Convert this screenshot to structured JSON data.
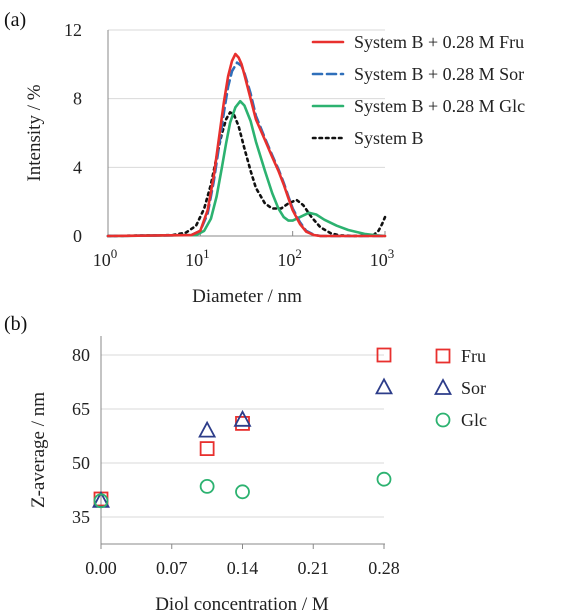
{
  "chart_data": [
    {
      "panel_label": "(a)",
      "type": "line",
      "xlabel": "Diameter / nm",
      "ylabel": "Intensity / %",
      "xscale": "log",
      "xlim": [
        1,
        1000
      ],
      "ylim": [
        0,
        12
      ],
      "yticks": [
        "0",
        "4",
        "8",
        "12"
      ],
      "xticks": [
        {
          "value": 1,
          "base": "10",
          "exp": "0"
        },
        {
          "value": 10,
          "base": "10",
          "exp": "1"
        },
        {
          "value": 100,
          "base": "10",
          "exp": "2"
        },
        {
          "value": 1000,
          "base": "10",
          "exp": "3"
        }
      ],
      "grid": "horizontal",
      "legend_position": "top-right",
      "series": [
        {
          "name": "System B + 0.28 M Fru",
          "color": "#e8302e",
          "style": "solid",
          "points": [
            [
              1,
              0
            ],
            [
              8,
              0.05
            ],
            [
              10,
              0.3
            ],
            [
              12,
              1.5
            ],
            [
              14,
              3.5
            ],
            [
              16,
              5.8
            ],
            [
              18,
              7.8
            ],
            [
              20,
              9.3
            ],
            [
              22,
              10.2
            ],
            [
              24,
              10.6
            ],
            [
              26,
              10.4
            ],
            [
              28,
              10
            ],
            [
              30,
              9.4
            ],
            [
              35,
              8
            ],
            [
              40,
              6.8
            ],
            [
              50,
              5.6
            ],
            [
              60,
              4.6
            ],
            [
              70,
              3.8
            ],
            [
              80,
              3
            ],
            [
              90,
              2.2
            ],
            [
              100,
              1.5
            ],
            [
              120,
              0.7
            ],
            [
              140,
              0.25
            ],
            [
              170,
              0.05
            ],
            [
              200,
              0
            ],
            [
              1000,
              0
            ]
          ]
        },
        {
          "name": "System B + 0.28 M Sor",
          "color": "#2f6fba",
          "style": "dashed",
          "points": [
            [
              1,
              0
            ],
            [
              8,
              0.05
            ],
            [
              10,
              0.3
            ],
            [
              12,
              1.3
            ],
            [
              14,
              3.2
            ],
            [
              16,
              5.3
            ],
            [
              18,
              7.2
            ],
            [
              20,
              8.7
            ],
            [
              22,
              9.6
            ],
            [
              25,
              10.1
            ],
            [
              28,
              9.9
            ],
            [
              30,
              9.5
            ],
            [
              35,
              8.3
            ],
            [
              40,
              7
            ],
            [
              50,
              5.7
            ],
            [
              60,
              4.7
            ],
            [
              70,
              3.9
            ],
            [
              80,
              3.1
            ],
            [
              90,
              2.3
            ],
            [
              100,
              1.6
            ],
            [
              120,
              0.8
            ],
            [
              140,
              0.3
            ],
            [
              170,
              0.07
            ],
            [
              200,
              0
            ],
            [
              1000,
              0
            ]
          ]
        },
        {
          "name": "System B + 0.28 M Glc",
          "color": "#2cb270",
          "style": "solid",
          "points": [
            [
              1,
              0
            ],
            [
              9,
              0.05
            ],
            [
              11,
              0.3
            ],
            [
              13,
              1
            ],
            [
              15,
              2.3
            ],
            [
              17,
              3.9
            ],
            [
              19,
              5.4
            ],
            [
              21,
              6.6
            ],
            [
              24,
              7.5
            ],
            [
              27,
              7.85
            ],
            [
              30,
              7.6
            ],
            [
              35,
              6.7
            ],
            [
              40,
              5.5
            ],
            [
              50,
              3.8
            ],
            [
              60,
              2.5
            ],
            [
              70,
              1.6
            ],
            [
              80,
              1.1
            ],
            [
              90,
              0.9
            ],
            [
              100,
              0.9
            ],
            [
              120,
              1.1
            ],
            [
              150,
              1.35
            ],
            [
              180,
              1.25
            ],
            [
              220,
              0.95
            ],
            [
              300,
              0.6
            ],
            [
              400,
              0.35
            ],
            [
              600,
              0.12
            ],
            [
              800,
              0.04
            ],
            [
              1000,
              0
            ]
          ]
        },
        {
          "name": "System B",
          "color": "#111111",
          "style": "dotted",
          "points": [
            [
              1,
              0
            ],
            [
              5,
              0.05
            ],
            [
              7,
              0.2
            ],
            [
              9,
              0.6
            ],
            [
              11,
              1.6
            ],
            [
              13,
              3
            ],
            [
              15,
              4.6
            ],
            [
              17,
              5.9
            ],
            [
              19,
              6.8
            ],
            [
              21,
              7.2
            ],
            [
              23,
              7.1
            ],
            [
              26,
              6.4
            ],
            [
              30,
              5.1
            ],
            [
              35,
              3.8
            ],
            [
              40,
              2.8
            ],
            [
              50,
              1.9
            ],
            [
              60,
              1.6
            ],
            [
              75,
              1.6
            ],
            [
              90,
              1.9
            ],
            [
              110,
              2.1
            ],
            [
              130,
              1.8
            ],
            [
              160,
              1.1
            ],
            [
              200,
              0.5
            ],
            [
              260,
              0.15
            ],
            [
              330,
              0.03
            ],
            [
              500,
              0
            ],
            [
              750,
              0.05
            ],
            [
              850,
              0.3
            ],
            [
              930,
              0.7
            ],
            [
              1000,
              1.1
            ]
          ]
        }
      ]
    },
    {
      "panel_label": "(b)",
      "type": "scatter",
      "xlabel": "Diol concentration / M",
      "ylabel": "Z-average / nm",
      "xlim": [
        0,
        0.28
      ],
      "ylim": [
        35,
        80
      ],
      "xticks": [
        "0.00",
        "0.07",
        "0.14",
        "0.21",
        "0.28"
      ],
      "yticks": [
        "35",
        "50",
        "65",
        "80"
      ],
      "grid": "horizontal",
      "legend_position": "right",
      "series": [
        {
          "name": "Fru",
          "color": "#e8302e",
          "marker": "square",
          "points": [
            [
              0,
              40
            ],
            [
              0.105,
              54
            ],
            [
              0.14,
              61
            ],
            [
              0.28,
              80
            ]
          ]
        },
        {
          "name": "Sor",
          "color": "#2d3d8a",
          "marker": "triangle",
          "points": [
            [
              0,
              39.5
            ],
            [
              0.105,
              59
            ],
            [
              0.14,
              62
            ],
            [
              0.28,
              71
            ]
          ]
        },
        {
          "name": "Glc",
          "color": "#2cb270",
          "marker": "circle",
          "points": [
            [
              0,
              39.5
            ],
            [
              0.105,
              43.5
            ],
            [
              0.14,
              42
            ],
            [
              0.28,
              45.5
            ]
          ]
        }
      ]
    }
  ]
}
